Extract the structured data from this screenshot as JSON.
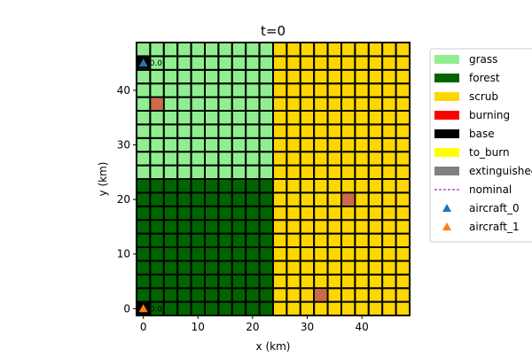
{
  "chart_data": {
    "type": "heatmap",
    "title": "t=0",
    "xlabel": "x (km)",
    "ylabel": "y (km)",
    "xlim": [
      -1.25,
      48.75
    ],
    "ylim": [
      -1.25,
      48.75
    ],
    "x_ticks": [
      0,
      10,
      20,
      30,
      40
    ],
    "y_ticks": [
      0,
      10,
      20,
      30,
      40
    ],
    "grid": {
      "cell_size_km": 2.5,
      "x_min": -1.25,
      "y_min": -1.25,
      "cols": 20,
      "rows": 20
    },
    "regions": [
      {
        "terrain": "forest",
        "x_range": [
          -1.25,
          23.75
        ],
        "y_range": [
          -1.25,
          23.75
        ]
      },
      {
        "terrain": "grass",
        "x_range": [
          -1.25,
          23.75
        ],
        "y_range": [
          23.75,
          48.75
        ]
      },
      {
        "terrain": "scrub",
        "x_range": [
          23.75,
          48.75
        ],
        "y_range": [
          -1.25,
          48.75
        ]
      }
    ],
    "special_cells": [
      {
        "state": "fire_spot",
        "x": 2.5,
        "y": 37.5
      },
      {
        "state": "fire_spot",
        "x": 37.5,
        "y": 20.0
      },
      {
        "state": "fire_spot",
        "x": 32.5,
        "y": 2.5
      },
      {
        "state": "base",
        "x": 0.0,
        "y": 45.0
      },
      {
        "state": "base",
        "x": 0.0,
        "y": 0.0
      }
    ],
    "aircraft": [
      {
        "name": "aircraft_0",
        "x": 0.0,
        "y": 45.0,
        "label": "0.0"
      },
      {
        "name": "aircraft_1",
        "x": 0.0,
        "y": 0.0,
        "label": "0.0"
      }
    ],
    "legend": {
      "position": "outside-right",
      "entries": [
        {
          "label": "grass",
          "kind": "patch",
          "color": "#90ee90"
        },
        {
          "label": "forest",
          "kind": "patch",
          "color": "#006400"
        },
        {
          "label": "scrub",
          "kind": "patch",
          "color": "#ffd700"
        },
        {
          "label": "burning",
          "kind": "patch",
          "color": "#ff0000"
        },
        {
          "label": "base",
          "kind": "patch",
          "color": "#000000"
        },
        {
          "label": "to_burn",
          "kind": "patch",
          "color": "#ffff00"
        },
        {
          "label": "extinguished",
          "kind": "patch",
          "color": "#808080"
        },
        {
          "label": "nominal",
          "kind": "dashed",
          "color": "#8b008b"
        },
        {
          "label": "aircraft_0",
          "kind": "marker",
          "color": "#1f77b4"
        },
        {
          "label": "aircraft_1",
          "kind": "marker",
          "color": "#ff7f0e"
        }
      ]
    },
    "colors": {
      "grass": "#90ee90",
      "forest": "#006400",
      "scrub": "#ffd700",
      "fire_spot": "#cd6a4a",
      "base": "#000000",
      "cell_border": "#000000",
      "aircraft_0": "#1f77b4",
      "aircraft_1": "#ff7f0e"
    }
  }
}
